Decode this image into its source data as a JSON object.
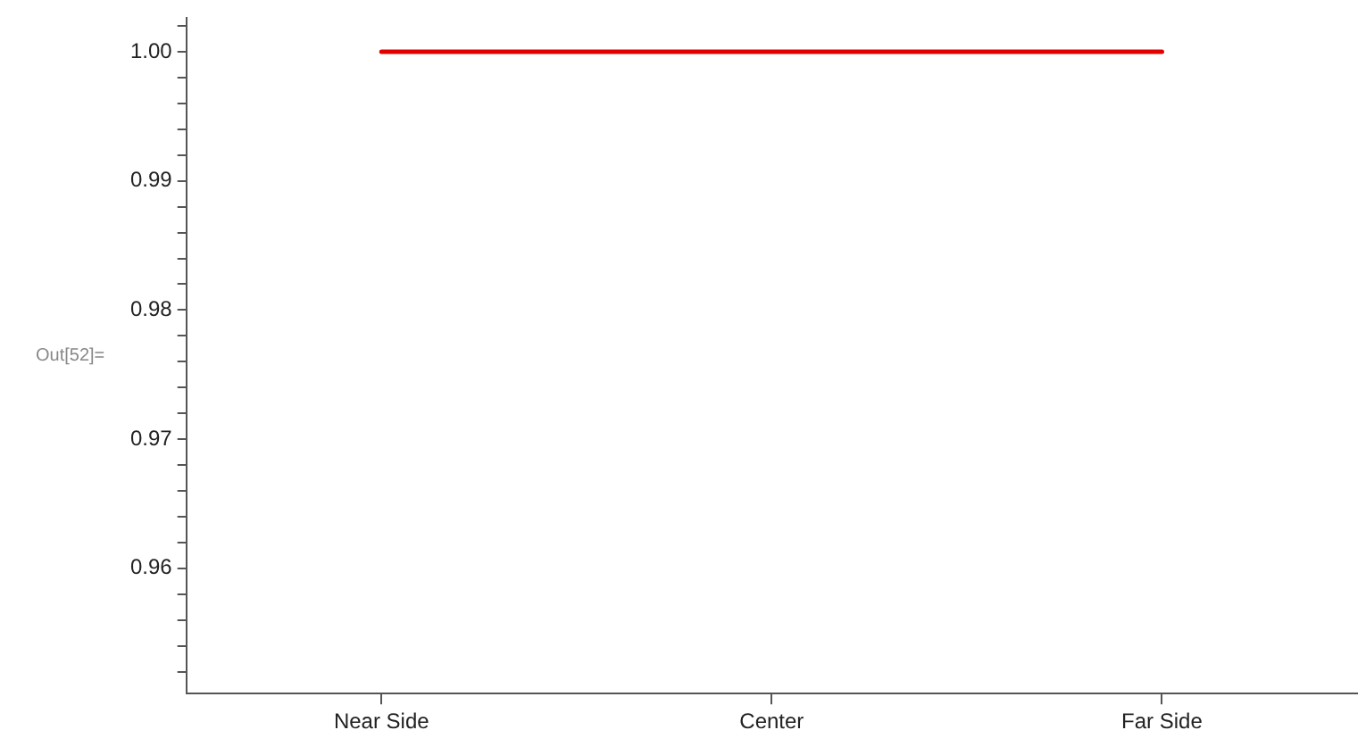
{
  "chart_data": {
    "type": "line",
    "annotations": [
      "Out[52]="
    ],
    "categories": [
      "Near Side",
      "Center",
      "Far Side"
    ],
    "ylim": [
      0.9503,
      1.0026
    ],
    "yticks": [
      {
        "value": 0.952,
        "label": null
      },
      {
        "value": 0.954,
        "label": null
      },
      {
        "value": 0.956,
        "label": null
      },
      {
        "value": 0.958,
        "label": null
      },
      0.96,
      {
        "value": 0.962,
        "label": null
      },
      {
        "value": 0.964,
        "label": null
      },
      {
        "value": 0.966,
        "label": null
      },
      {
        "value": 0.968,
        "label": null
      },
      0.97,
      {
        "value": 0.972,
        "label": null
      },
      {
        "value": 0.974,
        "label": null
      },
      {
        "value": 0.976,
        "label": null
      },
      {
        "value": 0.978,
        "label": null
      },
      0.98,
      {
        "value": 0.982,
        "label": null
      },
      {
        "value": 0.984,
        "label": null
      },
      {
        "value": 0.986,
        "label": null
      },
      {
        "value": 0.988,
        "label": null
      },
      0.99,
      {
        "value": 0.992,
        "label": null
      },
      {
        "value": 0.994,
        "label": null
      },
      {
        "value": 0.996,
        "label": null
      },
      {
        "value": 0.998,
        "label": null
      },
      {
        "value": 1,
        "label": "1.00"
      },
      {
        "value": 1.002,
        "label": null
      }
    ],
    "series": [
      {
        "color": "#e00000",
        "values": [
          1,
          1,
          1
        ]
      }
    ],
    "grid": false,
    "legend": false,
    "marker": "none",
    "line_style": "solid"
  }
}
